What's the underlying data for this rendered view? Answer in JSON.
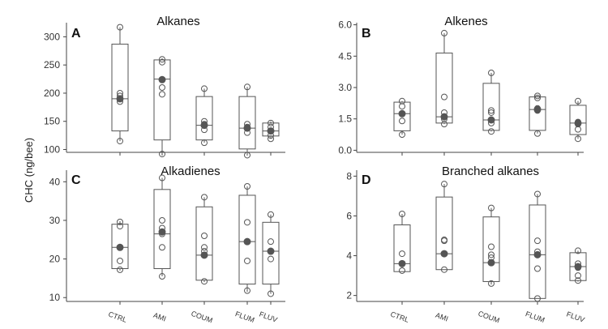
{
  "figure": {
    "ylabel": "CHC (ng/bee)"
  },
  "colors": {
    "stroke": "#555555",
    "mean_dot": "#555555",
    "axis": "#444444"
  },
  "chart_data": [
    {
      "type": "box",
      "letter": "A",
      "title": "Alkanes",
      "categories": [
        "CTRL",
        "AMI",
        "COUM",
        "FLUM",
        "FLUV"
      ],
      "show_category_labels": false,
      "ylim": [
        95,
        325
      ],
      "yticks": [
        100,
        150,
        200,
        250,
        300
      ],
      "ytick_labels": [
        "100",
        "150",
        "200",
        "250",
        "300"
      ],
      "boxes": [
        {
          "q1": 133,
          "median": 190,
          "q3": 287,
          "whisker_low": 115,
          "whisker_high": 317,
          "mean": 190,
          "points": [
            115,
            185,
            190,
            195,
            200,
            317
          ]
        },
        {
          "q1": 117,
          "median": 225,
          "q3": 259,
          "whisker_low": 92,
          "whisker_high": 262,
          "mean": 224,
          "points": [
            92,
            198,
            210,
            255,
            260
          ]
        },
        {
          "q1": 117,
          "median": 143,
          "q3": 194,
          "whisker_low": 112,
          "whisker_high": 208,
          "mean": 143,
          "points": [
            112,
            135,
            145,
            150,
            208
          ]
        },
        {
          "q1": 101,
          "median": 138,
          "q3": 194,
          "whisker_low": 90,
          "whisker_high": 211,
          "mean": 138,
          "points": [
            90,
            130,
            140,
            145,
            211
          ]
        },
        {
          "q1": 124,
          "median": 133,
          "q3": 147,
          "whisker_low": 119,
          "whisker_high": 150,
          "mean": 133,
          "points": [
            119,
            125,
            133,
            140,
            147
          ]
        }
      ]
    },
    {
      "type": "box",
      "letter": "B",
      "title": "Alkenes",
      "categories": [
        "CTRL",
        "AMI",
        "COUM",
        "FLUM",
        "FLUV"
      ],
      "show_category_labels": false,
      "ylim": [
        -0.1,
        6.1
      ],
      "yticks": [
        0,
        1.5,
        3,
        4.5,
        6
      ],
      "ytick_labels": [
        "0.0",
        "1.5",
        "3.0",
        "4.5",
        "6.0"
      ],
      "boxes": [
        {
          "q1": 0.93,
          "median": 1.75,
          "q3": 2.3,
          "whisker_low": 0.75,
          "whisker_high": 2.35,
          "mean": 1.75,
          "points": [
            0.75,
            1.4,
            1.75,
            2.1,
            2.35
          ]
        },
        {
          "q1": 1.3,
          "median": 1.6,
          "q3": 4.65,
          "whisker_low": 1.25,
          "whisker_high": 5.6,
          "mean": 1.6,
          "points": [
            1.25,
            1.5,
            1.8,
            2.55,
            5.6
          ]
        },
        {
          "q1": 0.95,
          "median": 1.45,
          "q3": 3.2,
          "whisker_low": 0.9,
          "whisker_high": 3.7,
          "mean": 1.45,
          "points": [
            0.9,
            1.3,
            1.8,
            1.9,
            3.7
          ]
        },
        {
          "q1": 0.95,
          "median": 1.95,
          "q3": 2.55,
          "whisker_low": 0.8,
          "whisker_high": 2.6,
          "mean": 1.95,
          "points": [
            0.8,
            1.9,
            2.0,
            2.5,
            2.6
          ]
        },
        {
          "q1": 0.75,
          "median": 1.3,
          "q3": 2.15,
          "whisker_low": 0.55,
          "whisker_high": 2.35,
          "mean": 1.3,
          "points": [
            0.55,
            1.0,
            1.25,
            1.35,
            2.35
          ]
        }
      ]
    },
    {
      "type": "box",
      "letter": "C",
      "title": "Alkadienes",
      "categories": [
        "CTRL",
        "AMI",
        "COUM",
        "FLUM",
        "FLUV"
      ],
      "show_category_labels": true,
      "ylim": [
        9,
        43
      ],
      "yticks": [
        10,
        20,
        30,
        40
      ],
      "ytick_labels": [
        "10",
        "20",
        "30",
        "40"
      ],
      "boxes": [
        {
          "q1": 17.5,
          "median": 23,
          "q3": 29,
          "whisker_low": 17,
          "whisker_high": 29.8,
          "mean": 23,
          "points": [
            17.2,
            19.5,
            23,
            28.5,
            29.6
          ]
        },
        {
          "q1": 17.5,
          "median": 26.5,
          "q3": 38,
          "whisker_low": 15.5,
          "whisker_high": 41,
          "mean": 27,
          "points": [
            15.5,
            23,
            26.5,
            28,
            30,
            41
          ]
        },
        {
          "q1": 14.5,
          "median": 21,
          "q3": 33.5,
          "whisker_low": 14,
          "whisker_high": 36,
          "mean": 21,
          "points": [
            14.2,
            22,
            23,
            26,
            36
          ]
        },
        {
          "q1": 13.5,
          "median": 24.5,
          "q3": 36.5,
          "whisker_low": 11.5,
          "whisker_high": 38.8,
          "mean": 24.5,
          "points": [
            11.8,
            19.5,
            24.5,
            29.5,
            38.8
          ]
        },
        {
          "q1": 13.5,
          "median": 22,
          "q3": 29.5,
          "whisker_low": 11,
          "whisker_high": 31.5,
          "mean": 22,
          "points": [
            11,
            20,
            22,
            24.5,
            31.5
          ]
        }
      ]
    },
    {
      "type": "box",
      "letter": "D",
      "title": "Branched alkanes",
      "categories": [
        "CTRL",
        "AMI",
        "COUM",
        "FLUM",
        "FLUV"
      ],
      "show_category_labels": true,
      "ylim": [
        1.7,
        8.3
      ],
      "yticks": [
        2,
        4,
        6,
        8
      ],
      "ytick_labels": [
        "2",
        "4",
        "6",
        "8"
      ],
      "boxes": [
        {
          "q1": 3.2,
          "median": 3.6,
          "q3": 5.55,
          "whisker_low": 3.2,
          "whisker_high": 6.1,
          "mean": 3.6,
          "points": [
            3.25,
            3.6,
            4.1,
            6.1
          ]
        },
        {
          "q1": 3.3,
          "median": 4.1,
          "q3": 6.95,
          "whisker_low": 3.3,
          "whisker_high": 7.6,
          "mean": 4.1,
          "points": [
            3.3,
            4.1,
            4.75,
            4.8,
            7.6
          ]
        },
        {
          "q1": 2.7,
          "median": 3.65,
          "q3": 5.95,
          "whisker_low": 2.55,
          "whisker_high": 6.4,
          "mean": 3.65,
          "points": [
            2.6,
            3.9,
            4.05,
            4.45,
            6.4
          ]
        },
        {
          "q1": 1.85,
          "median": 4.05,
          "q3": 6.55,
          "whisker_low": 1.85,
          "whisker_high": 7.1,
          "mean": 4.05,
          "points": [
            1.85,
            3.35,
            4.2,
            4.75,
            7.1
          ]
        },
        {
          "q1": 2.75,
          "median": 3.45,
          "q3": 4.15,
          "whisker_low": 2.7,
          "whisker_high": 4.25,
          "mean": 3.45,
          "points": [
            2.75,
            3.0,
            3.4,
            3.6,
            4.25
          ]
        }
      ]
    }
  ]
}
